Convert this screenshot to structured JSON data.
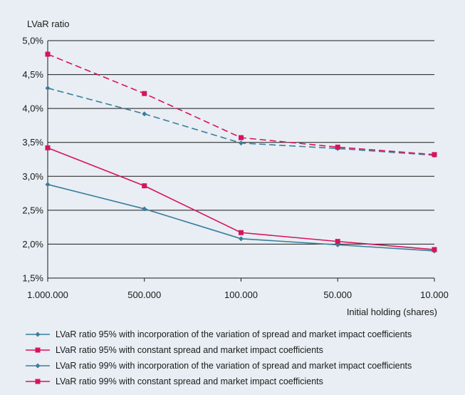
{
  "chart_data": {
    "type": "line",
    "ylabel": "LVaR ratio",
    "xlabel": "Initial holding (shares)",
    "categories": [
      "1.000.000",
      "500.000",
      "100.000",
      "50.000",
      "10.000"
    ],
    "ylim": [
      1.5,
      5.0
    ],
    "yticks": [
      {
        "value": 1.5,
        "label": "1,5%"
      },
      {
        "value": 2.0,
        "label": "2,0%"
      },
      {
        "value": 2.5,
        "label": "2,5%"
      },
      {
        "value": 3.0,
        "label": "3,0%"
      },
      {
        "value": 3.5,
        "label": "3,5%"
      },
      {
        "value": 4.0,
        "label": "4,0%"
      },
      {
        "value": 4.5,
        "label": "4,5%"
      },
      {
        "value": 5.0,
        "label": "5,0%"
      }
    ],
    "grid": true,
    "legend_position": "bottom",
    "series": [
      {
        "name": "LVaR ratio 95% with incorporation of the variation of spread and market impact coefficients",
        "values": [
          2.88,
          2.52,
          2.08,
          1.99,
          1.9
        ],
        "color": "#3a7d9c",
        "dashed": false,
        "marker": "diamond"
      },
      {
        "name": "LVaR ratio 95% with constant spread and market impact coefficients",
        "values": [
          3.42,
          2.86,
          2.17,
          2.04,
          1.92
        ],
        "color": "#d8135c",
        "dashed": false,
        "marker": "square"
      },
      {
        "name": "LVaR ratio 99% with incorporation of the variation of spread and market impact coefficients",
        "values": [
          4.3,
          3.92,
          3.49,
          3.41,
          3.31
        ],
        "color": "#3a7d9c",
        "dashed": true,
        "marker": "diamond"
      },
      {
        "name": "LVaR ratio 99% with constant spread and market impact coefficients",
        "values": [
          4.8,
          4.22,
          3.57,
          3.43,
          3.32
        ],
        "color": "#d8135c",
        "dashed": true,
        "marker": "square"
      }
    ]
  }
}
